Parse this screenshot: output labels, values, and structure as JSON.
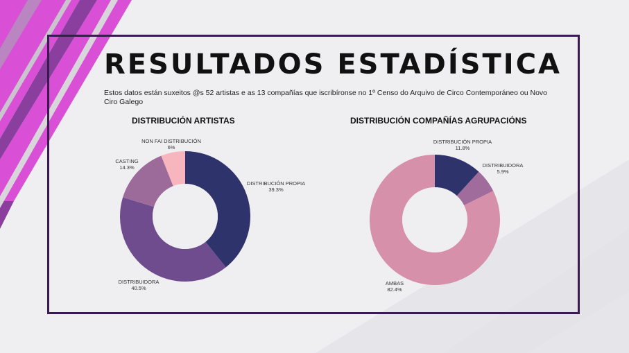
{
  "header": {
    "title": "RESULTADOS ESTADÍSTICA",
    "subtitle": "Estos datos están suxeitos @s 52 artistas e as 13 compañías que  iscribíronse no 1º Censo do Arquivo de Circo Contemporáneo ou Novo Ciro Galego"
  },
  "colors": {
    "accent_magenta": "#d94fd6",
    "accent_purple": "#8a3f9e",
    "frame": "#3b1a4f"
  },
  "chart_data": [
    {
      "type": "pie",
      "title": "DISTRIBUCIÓN ARTISTAS",
      "slices": [
        {
          "label": "DISTRIBUCIÓN PROPIA",
          "value": 39.3,
          "display": "39.3%",
          "color": "#2f336b"
        },
        {
          "label": "DISTRIBUIDORA",
          "value": 40.5,
          "display": "40.5%",
          "color": "#6e4c8d"
        },
        {
          "label": "CASTING",
          "value": 14.3,
          "display": "14.3%",
          "color": "#9c6b9a"
        },
        {
          "label": "NON FAI DISTRIBUCIÓN",
          "value": 6,
          "display": "6%",
          "color": "#f7b6bd"
        }
      ]
    },
    {
      "type": "pie",
      "title": "DISTRIBUCIÓN COMPAÑÍAS AGRUPACIÓNS",
      "slices": [
        {
          "label": "DISTRIBUCIÓN PROPIA",
          "value": 11.8,
          "display": "11.8%",
          "color": "#2f336b"
        },
        {
          "label": "DISTRIBUIDORA",
          "value": 5.9,
          "display": "5.9%",
          "color": "#a06c9c"
        },
        {
          "label": "AMBAS",
          "value": 82.4,
          "display": "82.4%",
          "color": "#d690aa"
        }
      ]
    }
  ]
}
